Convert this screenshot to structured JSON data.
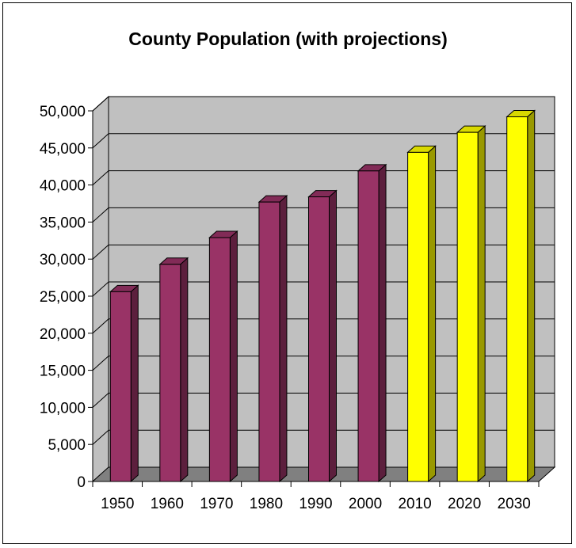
{
  "chart_data": {
    "type": "bar",
    "title": "County Population (with projections)",
    "xlabel": "",
    "ylabel": "",
    "categories": [
      "1950",
      "1960",
      "1970",
      "1980",
      "1990",
      "2000",
      "2010",
      "2020",
      "2030"
    ],
    "values": [
      25600,
      29300,
      32900,
      37700,
      38400,
      41900,
      44400,
      47100,
      49200
    ],
    "projected": [
      false,
      false,
      false,
      false,
      false,
      false,
      true,
      true,
      true
    ],
    "ylim": [
      0,
      50000
    ],
    "yticks": [
      0,
      5000,
      10000,
      15000,
      20000,
      25000,
      30000,
      35000,
      40000,
      45000,
      50000
    ],
    "ytick_labels": [
      "0",
      "5,000",
      "10,000",
      "15,000",
      "20,000",
      "25,000",
      "30,000",
      "35,000",
      "40,000",
      "45,000",
      "50,000"
    ],
    "grid": true,
    "style": "3d-column",
    "colors": {
      "historical": "#993366",
      "projected": "#ffff00",
      "wall": "#c0c0c0",
      "floor": "#808080",
      "frame": "#000000"
    }
  }
}
